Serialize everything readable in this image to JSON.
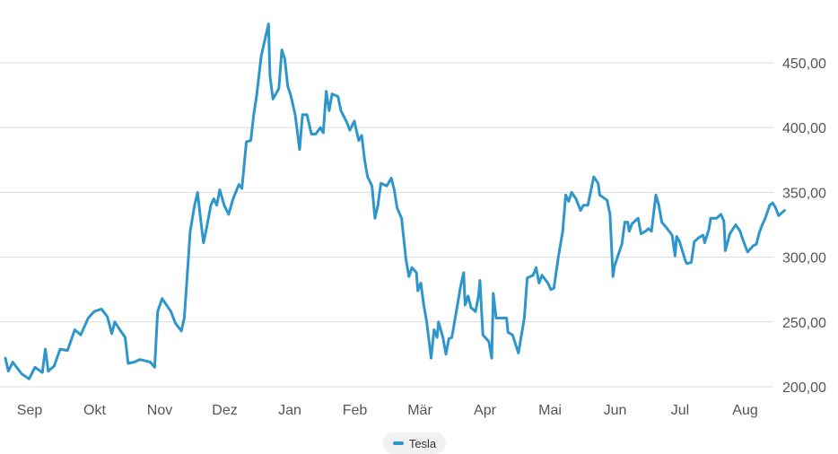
{
  "chart_data": {
    "type": "line",
    "x_labels": [
      "Sep",
      "Okt",
      "Nov",
      "Dez",
      "Jan",
      "Feb",
      "Mär",
      "Apr",
      "Mai",
      "Jun",
      "Jul",
      "Aug"
    ],
    "y_ticks": [
      "200,00",
      "250,00",
      "300,00",
      "350,00",
      "400,00",
      "450,00"
    ],
    "ylim": [
      200,
      480
    ],
    "grid": true,
    "y_axis_side": "right",
    "legend_position": "bottom-center",
    "series": [
      {
        "name": "Tesla",
        "color": "#2f96cc",
        "points": [
          [
            0.0,
            222
          ],
          [
            0.1,
            212
          ],
          [
            0.25,
            219
          ],
          [
            0.55,
            210
          ],
          [
            0.8,
            206
          ],
          [
            1.0,
            215
          ],
          [
            1.25,
            211
          ],
          [
            1.35,
            229
          ],
          [
            1.45,
            212
          ],
          [
            1.65,
            216
          ],
          [
            1.85,
            229
          ],
          [
            2.1,
            228
          ],
          [
            2.35,
            244
          ],
          [
            2.55,
            240
          ],
          [
            2.8,
            253
          ],
          [
            3.0,
            258
          ],
          [
            3.25,
            260
          ],
          [
            3.45,
            254
          ],
          [
            3.6,
            241
          ],
          [
            3.7,
            250
          ],
          [
            3.9,
            243
          ],
          [
            4.05,
            238
          ],
          [
            4.15,
            218
          ],
          [
            4.35,
            219
          ],
          [
            4.55,
            221
          ],
          [
            4.9,
            219
          ],
          [
            5.05,
            215
          ],
          [
            5.15,
            258
          ],
          [
            5.3,
            268
          ],
          [
            5.6,
            258
          ],
          [
            5.75,
            249
          ],
          [
            5.95,
            243
          ],
          [
            6.05,
            253
          ],
          [
            6.15,
            286
          ],
          [
            6.25,
            320
          ],
          [
            6.4,
            340
          ],
          [
            6.5,
            350
          ],
          [
            6.6,
            330
          ],
          [
            6.7,
            311
          ],
          [
            6.8,
            322
          ],
          [
            6.95,
            340
          ],
          [
            7.05,
            345
          ],
          [
            7.15,
            340
          ],
          [
            7.25,
            352
          ],
          [
            7.4,
            340
          ],
          [
            7.55,
            333
          ],
          [
            7.7,
            345
          ],
          [
            7.9,
            356
          ],
          [
            8.0,
            353
          ],
          [
            8.15,
            389
          ],
          [
            8.3,
            390
          ],
          [
            8.4,
            410
          ],
          [
            8.5,
            425
          ],
          [
            8.65,
            455
          ],
          [
            8.8,
            470
          ],
          [
            8.9,
            480
          ],
          [
            8.95,
            440
          ],
          [
            9.05,
            422
          ],
          [
            9.25,
            430
          ],
          [
            9.35,
            460
          ],
          [
            9.45,
            453
          ],
          [
            9.55,
            432
          ],
          [
            9.65,
            425
          ],
          [
            9.8,
            410
          ],
          [
            9.95,
            383
          ],
          [
            10.05,
            410
          ],
          [
            10.2,
            410
          ],
          [
            10.35,
            395
          ],
          [
            10.5,
            395
          ],
          [
            10.65,
            400
          ],
          [
            10.75,
            396
          ],
          [
            10.85,
            428
          ],
          [
            10.95,
            413
          ],
          [
            11.05,
            426
          ],
          [
            11.25,
            424
          ],
          [
            11.35,
            413
          ],
          [
            11.55,
            404
          ],
          [
            11.65,
            398
          ],
          [
            11.8,
            405
          ],
          [
            11.95,
            390
          ],
          [
            12.05,
            394
          ],
          [
            12.15,
            375
          ],
          [
            12.25,
            362
          ],
          [
            12.4,
            355
          ],
          [
            12.5,
            330
          ],
          [
            12.6,
            340
          ],
          [
            12.7,
            357
          ],
          [
            12.9,
            355
          ],
          [
            13.05,
            361
          ],
          [
            13.15,
            352
          ],
          [
            13.25,
            338
          ],
          [
            13.4,
            330
          ],
          [
            13.55,
            298
          ],
          [
            13.65,
            285
          ],
          [
            13.75,
            292
          ],
          [
            13.9,
            288
          ],
          [
            13.95,
            274
          ],
          [
            14.05,
            280
          ],
          [
            14.15,
            263
          ],
          [
            14.25,
            250
          ],
          [
            14.4,
            222
          ],
          [
            14.5,
            244
          ],
          [
            14.6,
            238
          ],
          [
            14.65,
            250
          ],
          [
            14.8,
            238
          ],
          [
            14.9,
            225
          ],
          [
            15.0,
            237
          ],
          [
            15.1,
            238
          ],
          [
            15.25,
            258
          ],
          [
            15.4,
            278
          ],
          [
            15.5,
            288
          ],
          [
            15.55,
            263
          ],
          [
            15.65,
            270
          ],
          [
            15.75,
            261
          ],
          [
            15.9,
            258
          ],
          [
            16.0,
            270
          ],
          [
            16.05,
            282
          ],
          [
            16.15,
            240
          ],
          [
            16.35,
            235
          ],
          [
            16.45,
            222
          ],
          [
            16.5,
            272
          ],
          [
            16.6,
            253
          ],
          [
            16.8,
            253
          ],
          [
            16.95,
            253
          ],
          [
            17.0,
            242
          ],
          [
            17.15,
            240
          ],
          [
            17.35,
            226
          ],
          [
            17.55,
            253
          ],
          [
            17.65,
            284
          ],
          [
            17.85,
            286
          ],
          [
            17.95,
            292
          ],
          [
            18.05,
            280
          ],
          [
            18.15,
            286
          ],
          [
            18.35,
            280
          ],
          [
            18.45,
            275
          ],
          [
            18.55,
            276
          ],
          [
            18.7,
            300
          ],
          [
            18.85,
            320
          ],
          [
            18.95,
            348
          ],
          [
            19.05,
            343
          ],
          [
            19.15,
            350
          ],
          [
            19.3,
            345
          ],
          [
            19.45,
            336
          ],
          [
            19.55,
            340
          ],
          [
            19.7,
            340
          ],
          [
            19.9,
            362
          ],
          [
            20.05,
            357
          ],
          [
            20.1,
            348
          ],
          [
            20.35,
            344
          ],
          [
            20.45,
            333
          ],
          [
            20.55,
            285
          ],
          [
            20.6,
            293
          ],
          [
            20.7,
            300
          ],
          [
            20.85,
            310
          ],
          [
            20.95,
            327
          ],
          [
            21.05,
            327
          ],
          [
            21.1,
            320
          ],
          [
            21.2,
            326
          ],
          [
            21.4,
            330
          ],
          [
            21.5,
            318
          ],
          [
            21.65,
            320
          ],
          [
            21.75,
            322
          ],
          [
            21.85,
            320
          ],
          [
            22.0,
            348
          ],
          [
            22.1,
            340
          ],
          [
            22.2,
            327
          ],
          [
            22.35,
            323
          ],
          [
            22.55,
            317
          ],
          [
            22.65,
            301
          ],
          [
            22.7,
            316
          ],
          [
            22.8,
            312
          ],
          [
            23.0,
            297
          ],
          [
            23.05,
            295
          ],
          [
            23.2,
            296
          ],
          [
            23.3,
            312
          ],
          [
            23.45,
            315
          ],
          [
            23.6,
            317
          ],
          [
            23.65,
            311
          ],
          [
            23.8,
            322
          ],
          [
            23.85,
            330
          ],
          [
            24.05,
            330
          ],
          [
            24.2,
            333
          ],
          [
            24.3,
            328
          ],
          [
            24.35,
            305
          ],
          [
            24.5,
            318
          ],
          [
            24.7,
            325
          ],
          [
            24.85,
            320
          ],
          [
            24.95,
            313
          ],
          [
            25.1,
            304
          ],
          [
            25.3,
            309
          ],
          [
            25.4,
            310
          ],
          [
            25.5,
            319
          ],
          [
            25.6,
            325
          ],
          [
            25.7,
            330
          ],
          [
            25.85,
            340
          ],
          [
            25.95,
            342
          ],
          [
            26.05,
            338
          ],
          [
            26.15,
            332
          ],
          [
            26.25,
            334
          ],
          [
            26.35,
            336
          ]
        ]
      }
    ]
  }
}
